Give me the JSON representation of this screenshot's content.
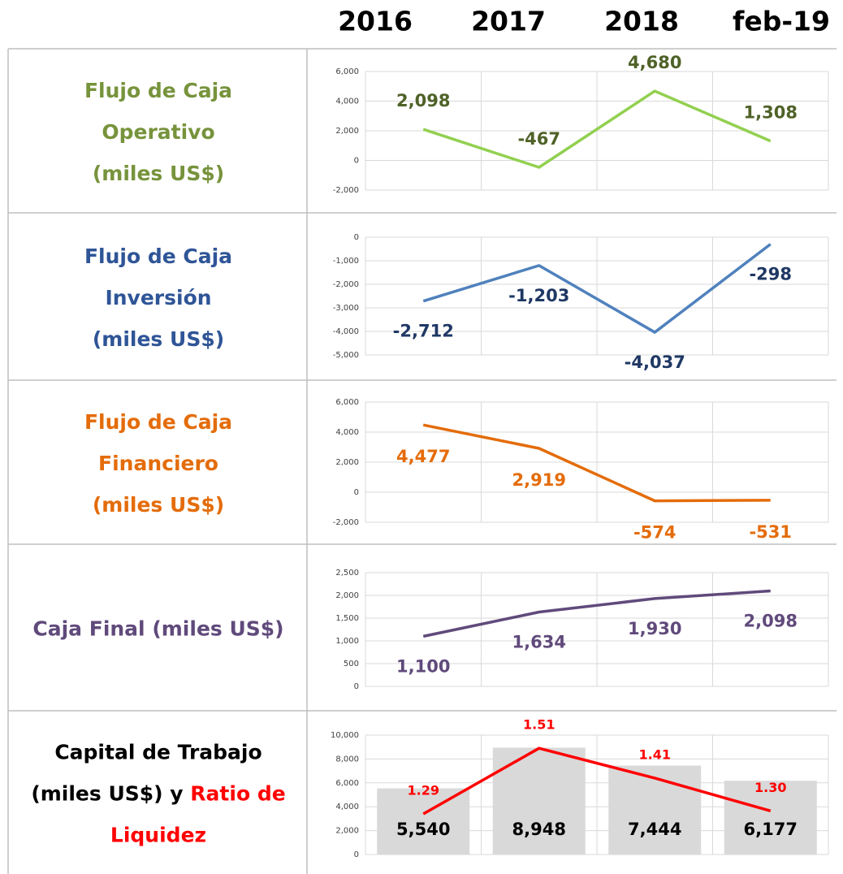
{
  "header": {
    "categories": [
      "2016",
      "2017",
      "2018",
      "feb-19"
    ]
  },
  "rows": [
    {
      "label": [
        [
          {
            "text": "Flujo de Caja",
            "color": "#77933c"
          }
        ],
        [
          {
            "text": "Operativo",
            "color": "#77933c"
          }
        ],
        [
          {
            "text": "(miles US$)",
            "color": "#77933c"
          }
        ]
      ]
    },
    {
      "label": [
        [
          {
            "text": "Flujo de Caja",
            "color": "#2f5597"
          }
        ],
        [
          {
            "text": "Inversión",
            "color": "#2f5597"
          }
        ],
        [
          {
            "text": "(miles US$)",
            "color": "#2f5597"
          }
        ]
      ]
    },
    {
      "label": [
        [
          {
            "text": "Flujo de Caja",
            "color": "#e46c0a"
          }
        ],
        [
          {
            "text": "Financiero",
            "color": "#e46c0a"
          }
        ],
        [
          {
            "text": "(miles US$)",
            "color": "#e46c0a"
          }
        ]
      ]
    },
    {
      "label": [
        [
          {
            "text": "Caja Final (miles US$)",
            "color": "#604a7b"
          }
        ]
      ]
    },
    {
      "label": [
        [
          {
            "text": "Capital de Trabajo",
            "color": "#000000"
          }
        ],
        [
          {
            "text": "(miles US$) y ",
            "color": "#000000"
          },
          {
            "text": "Ratio de",
            "color": "#ff0000"
          }
        ],
        [
          {
            "text": "Liquidez",
            "color": "#ff0000"
          }
        ]
      ]
    }
  ],
  "chart_data": [
    {
      "type": "line",
      "values": [
        2098,
        -467,
        4680,
        1308
      ],
      "value_labels": [
        "2,098",
        "-467",
        "4,680",
        "1,308"
      ],
      "color": "#92d050",
      "label_color": "#4f6228",
      "grid": true,
      "ylim": [
        -2000,
        6000
      ],
      "yticks": [
        {
          "value": -2000,
          "label": "-2,000"
        },
        0,
        {
          "value": 2000,
          "label": "2,000"
        },
        {
          "value": 4000,
          "label": "4,000"
        },
        {
          "value": 6000,
          "label": "6,000"
        }
      ]
    },
    {
      "type": "line",
      "values": [
        -2712,
        -1203,
        -4037,
        -298
      ],
      "value_labels": [
        "-2,712",
        "-1,203",
        "-4,037",
        "-298"
      ],
      "color": "#4f81bd",
      "label_color": "#1f3864",
      "grid": true,
      "ylim": [
        -5000,
        0
      ],
      "yticks": [
        {
          "value": -5000,
          "label": "-5,000"
        },
        {
          "value": -4000,
          "label": "-4,000"
        },
        {
          "value": -3000,
          "label": "-3,000"
        },
        {
          "value": -2000,
          "label": "-2,000"
        },
        {
          "value": -1000,
          "label": "-1,000"
        },
        0
      ]
    },
    {
      "type": "line",
      "values": [
        4477,
        2919,
        -574,
        -531
      ],
      "value_labels": [
        "4,477",
        "2,919",
        "-574",
        "-531"
      ],
      "color": "#e46c0a",
      "label_color": "#e46c0a",
      "grid": true,
      "ylim": [
        -2000,
        6000
      ],
      "yticks": [
        {
          "value": -2000,
          "label": "-2,000"
        },
        0,
        {
          "value": 2000,
          "label": "2,000"
        },
        {
          "value": 4000,
          "label": "4,000"
        },
        {
          "value": 6000,
          "label": "6,000"
        }
      ]
    },
    {
      "type": "line",
      "values": [
        1100,
        1634,
        1930,
        2098
      ],
      "value_labels": [
        "1,100",
        "1,634",
        "1,930",
        "2,098"
      ],
      "color": "#604a7b",
      "label_color": "#604a7b",
      "grid": true,
      "ylim": [
        0,
        2500
      ],
      "yticks": [
        0,
        500,
        {
          "value": 1000,
          "label": "1,000"
        },
        {
          "value": 1500,
          "label": "1,500"
        },
        {
          "value": 2000,
          "label": "2,000"
        },
        {
          "value": 2500,
          "label": "2,500"
        }
      ]
    },
    {
      "type": "combo",
      "grid": true,
      "series": [
        {
          "type": "bar",
          "values": [
            5540,
            8948,
            7444,
            6177
          ],
          "value_labels": [
            "5,540",
            "8,948",
            "7,444",
            "6,177"
          ],
          "color": "#d9d9d9",
          "label_color": "#000000"
        },
        {
          "type": "line",
          "axis": "y2",
          "values": [
            1.29,
            1.51,
            1.41,
            1.3
          ],
          "value_labels": [
            "1.29",
            "1.51",
            "1.41",
            "1.30"
          ],
          "color": "#ff0000",
          "label_color": "#ff0000"
        }
      ],
      "ylim": [
        0,
        10000
      ],
      "yticks": [
        0,
        {
          "value": 2000,
          "label": "2,000"
        },
        {
          "value": 4000,
          "label": "4,000"
        },
        {
          "value": 6000,
          "label": "6,000"
        },
        {
          "value": 8000,
          "label": "8,000"
        },
        {
          "value": 10000,
          "label": "10,000"
        }
      ],
      "y2lim": [
        1.154,
        1.554
      ]
    }
  ]
}
